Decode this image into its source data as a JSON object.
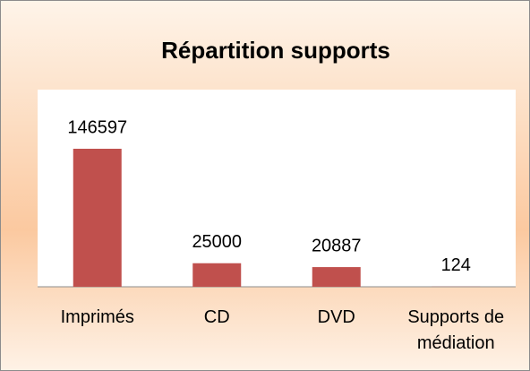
{
  "chart_data": {
    "type": "bar",
    "title": "Répartition supports",
    "categories": [
      "Imprimés",
      "CD",
      "DVD",
      "Supports de médiation"
    ],
    "values": [
      146597,
      25000,
      20887,
      124
    ],
    "color": "#c0504d"
  }
}
